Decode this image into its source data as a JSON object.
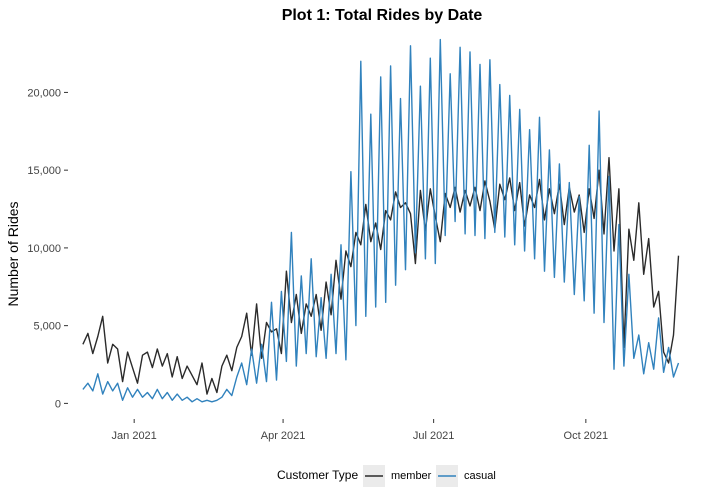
{
  "chart_data": {
    "type": "line",
    "title": "Plot 1: Total Rides by Date",
    "xlabel": "",
    "ylabel": "Number of Rides",
    "x_range": [
      "2020-12-01",
      "2021-11-30"
    ],
    "ylim": [
      0,
      23500
    ],
    "x_ticks": [
      {
        "date": "2021-01-01",
        "label": "Jan 2021"
      },
      {
        "date": "2021-04-01",
        "label": "Apr 2021"
      },
      {
        "date": "2021-07-01",
        "label": "Jul 2021"
      },
      {
        "date": "2021-10-01",
        "label": "Oct 2021"
      }
    ],
    "y_ticks": [
      {
        "value": 0,
        "label": "0"
      },
      {
        "value": 5000,
        "label": "5,000"
      },
      {
        "value": 10000,
        "label": "10,000"
      },
      {
        "value": 15000,
        "label": "15,000"
      },
      {
        "value": 20000,
        "label": "20,000"
      }
    ],
    "grid": false,
    "legend": {
      "title": "Customer Type",
      "position": "bottom"
    },
    "series": [
      {
        "name": "member",
        "color": "#2b2b2b",
        "points": [
          [
            "2020-12-01",
            3800
          ],
          [
            "2020-12-04",
            4500
          ],
          [
            "2020-12-07",
            3200
          ],
          [
            "2020-12-10",
            4300
          ],
          [
            "2020-12-13",
            5600
          ],
          [
            "2020-12-16",
            2600
          ],
          [
            "2020-12-19",
            3800
          ],
          [
            "2020-12-22",
            3500
          ],
          [
            "2020-12-25",
            1400
          ],
          [
            "2020-12-28",
            3300
          ],
          [
            "2020-12-31",
            2300
          ],
          [
            "2021-01-03",
            1300
          ],
          [
            "2021-01-06",
            3100
          ],
          [
            "2021-01-09",
            3300
          ],
          [
            "2021-01-12",
            2300
          ],
          [
            "2021-01-15",
            3500
          ],
          [
            "2021-01-18",
            2400
          ],
          [
            "2021-01-21",
            3200
          ],
          [
            "2021-01-24",
            1700
          ],
          [
            "2021-01-27",
            3000
          ],
          [
            "2021-01-30",
            1600
          ],
          [
            "2021-02-02",
            2400
          ],
          [
            "2021-02-05",
            1800
          ],
          [
            "2021-02-08",
            1200
          ],
          [
            "2021-02-11",
            2600
          ],
          [
            "2021-02-14",
            600
          ],
          [
            "2021-02-17",
            1600
          ],
          [
            "2021-02-20",
            700
          ],
          [
            "2021-02-23",
            2400
          ],
          [
            "2021-02-26",
            3100
          ],
          [
            "2021-03-01",
            2100
          ],
          [
            "2021-03-04",
            3600
          ],
          [
            "2021-03-07",
            4300
          ],
          [
            "2021-03-10",
            5800
          ],
          [
            "2021-03-13",
            3100
          ],
          [
            "2021-03-16",
            6400
          ],
          [
            "2021-03-19",
            2900
          ],
          [
            "2021-03-22",
            5200
          ],
          [
            "2021-03-25",
            4600
          ],
          [
            "2021-03-28",
            4800
          ],
          [
            "2021-03-31",
            3200
          ],
          [
            "2021-04-03",
            8500
          ],
          [
            "2021-04-06",
            5200
          ],
          [
            "2021-04-09",
            7000
          ],
          [
            "2021-04-12",
            4500
          ],
          [
            "2021-04-15",
            6400
          ],
          [
            "2021-04-18",
            5600
          ],
          [
            "2021-04-21",
            7000
          ],
          [
            "2021-04-24",
            4700
          ],
          [
            "2021-04-27",
            7800
          ],
          [
            "2021-04-30",
            5700
          ],
          [
            "2021-05-03",
            9200
          ],
          [
            "2021-05-06",
            6700
          ],
          [
            "2021-05-09",
            9800
          ],
          [
            "2021-05-12",
            8800
          ],
          [
            "2021-05-15",
            11000
          ],
          [
            "2021-05-18",
            10200
          ],
          [
            "2021-05-21",
            12800
          ],
          [
            "2021-05-24",
            10400
          ],
          [
            "2021-05-27",
            11600
          ],
          [
            "2021-05-30",
            9900
          ],
          [
            "2021-06-02",
            12400
          ],
          [
            "2021-06-05",
            11800
          ],
          [
            "2021-06-08",
            13600
          ],
          [
            "2021-06-11",
            12600
          ],
          [
            "2021-06-14",
            12900
          ],
          [
            "2021-06-17",
            12200
          ],
          [
            "2021-06-20",
            9000
          ],
          [
            "2021-06-23",
            13700
          ],
          [
            "2021-06-26",
            11100
          ],
          [
            "2021-06-29",
            13800
          ],
          [
            "2021-07-02",
            12000
          ],
          [
            "2021-07-05",
            10400
          ],
          [
            "2021-07-08",
            13500
          ],
          [
            "2021-07-11",
            12600
          ],
          [
            "2021-07-14",
            13900
          ],
          [
            "2021-07-17",
            12300
          ],
          [
            "2021-07-20",
            13700
          ],
          [
            "2021-07-23",
            12700
          ],
          [
            "2021-07-26",
            13900
          ],
          [
            "2021-07-29",
            12400
          ],
          [
            "2021-08-01",
            14300
          ],
          [
            "2021-08-04",
            13000
          ],
          [
            "2021-08-07",
            11200
          ],
          [
            "2021-08-10",
            14100
          ],
          [
            "2021-08-13",
            13100
          ],
          [
            "2021-08-16",
            14500
          ],
          [
            "2021-08-19",
            12400
          ],
          [
            "2021-08-22",
            14200
          ],
          [
            "2021-08-25",
            11400
          ],
          [
            "2021-08-28",
            13400
          ],
          [
            "2021-08-31",
            12600
          ],
          [
            "2021-09-03",
            14400
          ],
          [
            "2021-09-06",
            11800
          ],
          [
            "2021-09-09",
            13800
          ],
          [
            "2021-09-12",
            12200
          ],
          [
            "2021-09-15",
            14100
          ],
          [
            "2021-09-18",
            11500
          ],
          [
            "2021-09-21",
            13900
          ],
          [
            "2021-09-24",
            12300
          ],
          [
            "2021-09-27",
            13400
          ],
          [
            "2021-09-30",
            11000
          ],
          [
            "2021-10-03",
            13800
          ],
          [
            "2021-10-06",
            11900
          ],
          [
            "2021-10-09",
            15000
          ],
          [
            "2021-10-12",
            10900
          ],
          [
            "2021-10-15",
            15800
          ],
          [
            "2021-10-18",
            9800
          ],
          [
            "2021-10-21",
            13800
          ],
          [
            "2021-10-24",
            3600
          ],
          [
            "2021-10-27",
            11200
          ],
          [
            "2021-10-30",
            9200
          ],
          [
            "2021-11-02",
            12900
          ],
          [
            "2021-11-05",
            8300
          ],
          [
            "2021-11-08",
            10600
          ],
          [
            "2021-11-11",
            6200
          ],
          [
            "2021-11-14",
            7200
          ],
          [
            "2021-11-17",
            3300
          ],
          [
            "2021-11-20",
            2600
          ],
          [
            "2021-11-23",
            4400
          ],
          [
            "2021-11-26",
            9500
          ]
        ]
      },
      {
        "name": "casual",
        "color": "#3182bd",
        "points": [
          [
            "2020-12-01",
            900
          ],
          [
            "2020-12-04",
            1300
          ],
          [
            "2020-12-07",
            800
          ],
          [
            "2020-12-10",
            1900
          ],
          [
            "2020-12-13",
            600
          ],
          [
            "2020-12-16",
            1400
          ],
          [
            "2020-12-19",
            800
          ],
          [
            "2020-12-22",
            1300
          ],
          [
            "2020-12-25",
            200
          ],
          [
            "2020-12-28",
            1000
          ],
          [
            "2020-12-31",
            400
          ],
          [
            "2021-01-03",
            900
          ],
          [
            "2021-01-06",
            400
          ],
          [
            "2021-01-09",
            700
          ],
          [
            "2021-01-12",
            300
          ],
          [
            "2021-01-15",
            900
          ],
          [
            "2021-01-18",
            300
          ],
          [
            "2021-01-21",
            700
          ],
          [
            "2021-01-24",
            200
          ],
          [
            "2021-01-27",
            600
          ],
          [
            "2021-01-30",
            200
          ],
          [
            "2021-02-02",
            400
          ],
          [
            "2021-02-05",
            100
          ],
          [
            "2021-02-08",
            300
          ],
          [
            "2021-02-11",
            100
          ],
          [
            "2021-02-14",
            200
          ],
          [
            "2021-02-17",
            100
          ],
          [
            "2021-02-20",
            200
          ],
          [
            "2021-02-23",
            400
          ],
          [
            "2021-02-26",
            900
          ],
          [
            "2021-03-01",
            500
          ],
          [
            "2021-03-04",
            1700
          ],
          [
            "2021-03-07",
            2600
          ],
          [
            "2021-03-10",
            1200
          ],
          [
            "2021-03-13",
            3500
          ],
          [
            "2021-03-16",
            1300
          ],
          [
            "2021-03-19",
            3800
          ],
          [
            "2021-03-22",
            1400
          ],
          [
            "2021-03-25",
            6500
          ],
          [
            "2021-03-28",
            1500
          ],
          [
            "2021-03-31",
            7200
          ],
          [
            "2021-04-03",
            2700
          ],
          [
            "2021-04-06",
            11000
          ],
          [
            "2021-04-09",
            2400
          ],
          [
            "2021-04-12",
            8200
          ],
          [
            "2021-04-15",
            3200
          ],
          [
            "2021-04-18",
            9300
          ],
          [
            "2021-04-21",
            3000
          ],
          [
            "2021-04-24",
            6800
          ],
          [
            "2021-04-27",
            2900
          ],
          [
            "2021-04-30",
            8300
          ],
          [
            "2021-05-03",
            3200
          ],
          [
            "2021-05-06",
            10200
          ],
          [
            "2021-05-09",
            2800
          ],
          [
            "2021-05-12",
            14900
          ],
          [
            "2021-05-15",
            5000
          ],
          [
            "2021-05-18",
            22000
          ],
          [
            "2021-05-21",
            5600
          ],
          [
            "2021-05-24",
            18600
          ],
          [
            "2021-05-27",
            6200
          ],
          [
            "2021-05-30",
            21000
          ],
          [
            "2021-06-02",
            6500
          ],
          [
            "2021-06-05",
            21700
          ],
          [
            "2021-06-08",
            7600
          ],
          [
            "2021-06-11",
            19600
          ],
          [
            "2021-06-14",
            8600
          ],
          [
            "2021-06-17",
            23000
          ],
          [
            "2021-06-20",
            9700
          ],
          [
            "2021-06-23",
            20400
          ],
          [
            "2021-06-26",
            9300
          ],
          [
            "2021-06-29",
            22200
          ],
          [
            "2021-07-02",
            9000
          ],
          [
            "2021-07-05",
            23400
          ],
          [
            "2021-07-08",
            10800
          ],
          [
            "2021-07-11",
            21200
          ],
          [
            "2021-07-14",
            11700
          ],
          [
            "2021-07-17",
            22900
          ],
          [
            "2021-07-20",
            10900
          ],
          [
            "2021-07-23",
            22600
          ],
          [
            "2021-07-26",
            10800
          ],
          [
            "2021-07-29",
            21800
          ],
          [
            "2021-08-01",
            10600
          ],
          [
            "2021-08-04",
            22100
          ],
          [
            "2021-08-07",
            11000
          ],
          [
            "2021-08-10",
            20500
          ],
          [
            "2021-08-13",
            10700
          ],
          [
            "2021-08-16",
            19800
          ],
          [
            "2021-08-19",
            10200
          ],
          [
            "2021-08-22",
            18900
          ],
          [
            "2021-08-25",
            9800
          ],
          [
            "2021-08-28",
            17600
          ],
          [
            "2021-08-31",
            9300
          ],
          [
            "2021-09-03",
            18400
          ],
          [
            "2021-09-06",
            8500
          ],
          [
            "2021-09-09",
            16300
          ],
          [
            "2021-09-12",
            8100
          ],
          [
            "2021-09-15",
            15400
          ],
          [
            "2021-09-18",
            7800
          ],
          [
            "2021-09-21",
            14200
          ],
          [
            "2021-09-24",
            7000
          ],
          [
            "2021-09-27",
            13300
          ],
          [
            "2021-09-30",
            6600
          ],
          [
            "2021-10-03",
            16600
          ],
          [
            "2021-10-06",
            5800
          ],
          [
            "2021-10-09",
            18800
          ],
          [
            "2021-10-12",
            5200
          ],
          [
            "2021-10-15",
            14600
          ],
          [
            "2021-10-18",
            2200
          ],
          [
            "2021-10-21",
            11500
          ],
          [
            "2021-10-24",
            2400
          ],
          [
            "2021-10-27",
            8300
          ],
          [
            "2021-10-30",
            2900
          ],
          [
            "2021-11-02",
            4400
          ],
          [
            "2021-11-05",
            1900
          ],
          [
            "2021-11-08",
            3900
          ],
          [
            "2021-11-11",
            2200
          ],
          [
            "2021-11-14",
            5500
          ],
          [
            "2021-11-17",
            2000
          ],
          [
            "2021-11-20",
            3600
          ],
          [
            "2021-11-23",
            1700
          ],
          [
            "2021-11-26",
            2600
          ]
        ]
      }
    ]
  }
}
